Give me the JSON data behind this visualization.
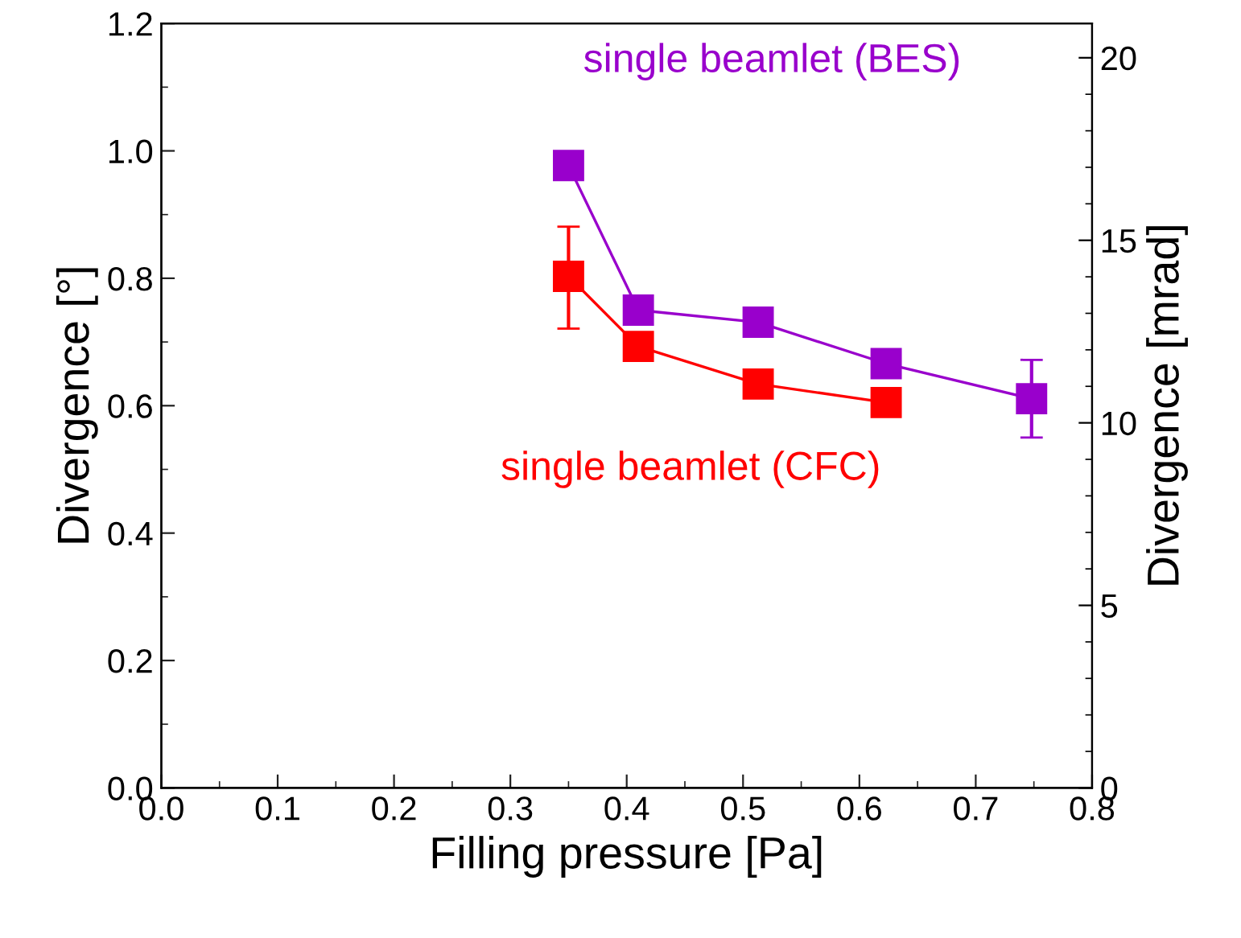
{
  "chart_data": {
    "type": "line",
    "xlabel": "Filling pressure [Pa]",
    "ylabel": "Divergence [°]",
    "y2label": "Divergence [mrad]",
    "xlim": [
      0,
      0.8
    ],
    "xticks": [
      {
        "value": 0,
        "label": "0.0"
      },
      {
        "value": 0.05,
        "label": null
      },
      0.1,
      {
        "value": 0.15,
        "label": null
      },
      0.2,
      {
        "value": 0.25,
        "label": null
      },
      0.3,
      {
        "value": 0.35,
        "label": null
      },
      0.4,
      {
        "value": 0.45,
        "label": null
      },
      0.5,
      {
        "value": 0.55,
        "label": null
      },
      0.6,
      {
        "value": 0.65,
        "label": null
      },
      0.7,
      {
        "value": 0.75,
        "label": null
      },
      0.8
    ],
    "ylim": [
      0,
      1.2
    ],
    "yticks": [
      {
        "value": 0,
        "label": "0.0"
      },
      {
        "value": 0.1,
        "label": null
      },
      0.2,
      {
        "value": 0.3,
        "label": null
      },
      0.4,
      {
        "value": 0.5,
        "label": null
      },
      0.6,
      {
        "value": 0.7,
        "label": null
      },
      0.8,
      {
        "value": 0.9,
        "label": null
      },
      {
        "value": 1,
        "label": "1.0"
      },
      {
        "value": 1.1,
        "label": null
      },
      1.2
    ],
    "y2lim": [
      0,
      20.94
    ],
    "y2ticks": [
      0,
      {
        "value": 1,
        "label": null
      },
      {
        "value": 2,
        "label": null
      },
      {
        "value": 3,
        "label": null
      },
      {
        "value": 4,
        "label": null
      },
      5,
      {
        "value": 6,
        "label": null
      },
      {
        "value": 7,
        "label": null
      },
      {
        "value": 8,
        "label": null
      },
      {
        "value": 9,
        "label": null
      },
      10,
      {
        "value": 11,
        "label": null
      },
      {
        "value": 12,
        "label": null
      },
      {
        "value": 13,
        "label": null
      },
      {
        "value": 14,
        "label": null
      },
      15,
      {
        "value": 16,
        "label": null
      },
      {
        "value": 17,
        "label": null
      },
      {
        "value": 18,
        "label": null
      },
      {
        "value": 19,
        "label": null
      },
      20
    ],
    "grid": false,
    "legend": false,
    "marker": "square",
    "line_style": "solid",
    "series": [
      {
        "name": "single beamlet (BES)",
        "color": "#9900cc",
        "x": [
          0.35,
          0.41,
          0.513,
          0.623,
          0.748
        ],
        "values": [
          0.977,
          0.75,
          0.731,
          0.666,
          0.611
        ],
        "errors": [
          null,
          null,
          null,
          null,
          [
            0.55,
            0.672
          ]
        ]
      },
      {
        "name": "single beamlet (CFC)",
        "color": "#ff0000",
        "x": [
          0.35,
          0.41,
          0.513,
          0.623
        ],
        "values": [
          0.803,
          0.693,
          0.634,
          0.605
        ],
        "errors": [
          [
            0.721,
            0.881
          ],
          null,
          null,
          null
        ]
      }
    ]
  }
}
